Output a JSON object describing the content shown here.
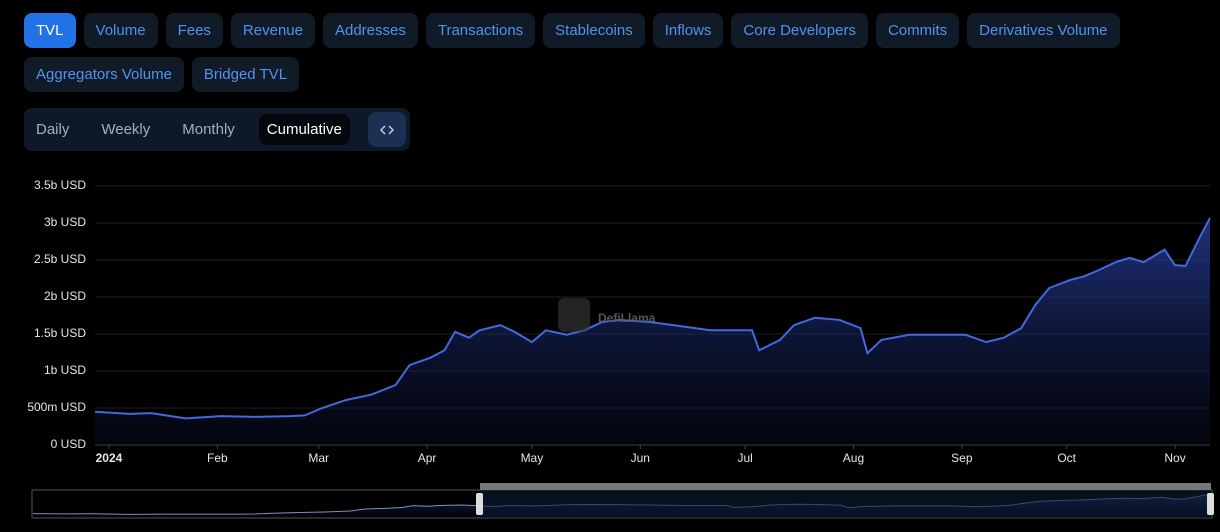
{
  "tabs": [
    "TVL",
    "Volume",
    "Fees",
    "Revenue",
    "Addresses",
    "Transactions",
    "Stablecoins",
    "Inflows",
    "Core Developers",
    "Commits",
    "Derivatives Volume",
    "Aggregators Volume",
    "Bridged TVL"
  ],
  "active_tab": 0,
  "periods": [
    "Daily",
    "Weekly",
    "Monthly",
    "Cumulative"
  ],
  "active_period": 3,
  "chart_data": {
    "type": "area",
    "watermark": "DefiLlama",
    "color": "#4369e0",
    "grid": true,
    "xlim": [
      -4,
      315
    ],
    "xticks": [
      {
        "value": 0,
        "label": "2024"
      },
      {
        "value": 31,
        "label": "Feb"
      },
      {
        "value": 60,
        "label": "Mar"
      },
      {
        "value": 91,
        "label": "Apr"
      },
      {
        "value": 121,
        "label": "May"
      },
      {
        "value": 152,
        "label": "Jun"
      },
      {
        "value": 182,
        "label": "Jul"
      },
      {
        "value": 213,
        "label": "Aug"
      },
      {
        "value": 244,
        "label": "Sep"
      },
      {
        "value": 274,
        "label": "Oct"
      },
      {
        "value": 305,
        "label": "Nov"
      }
    ],
    "ylim": [
      0,
      3500000000
    ],
    "yticks": [
      {
        "value": 0,
        "label": "0 USD"
      },
      {
        "value": 500000000,
        "label": "500m USD"
      },
      {
        "value": 1000000000,
        "label": "1b USD"
      },
      {
        "value": 1500000000,
        "label": "1.5b USD"
      },
      {
        "value": 2000000000,
        "label": "2b USD"
      },
      {
        "value": 2500000000,
        "label": "2.5b USD"
      },
      {
        "value": 3000000000,
        "label": "3b USD"
      },
      {
        "value": 3500000000,
        "label": "3.5b USD"
      }
    ],
    "x": [
      -4,
      6,
      12,
      22,
      32,
      42,
      52,
      56,
      61,
      68,
      75,
      82,
      86,
      92,
      96,
      99,
      103,
      106,
      112,
      116,
      121,
      125,
      131,
      136,
      141,
      146,
      155,
      163,
      172,
      181,
      184,
      186,
      192,
      196,
      202,
      209,
      215,
      217,
      221,
      229,
      238,
      245,
      251,
      256,
      261,
      265,
      269,
      275,
      279,
      283,
      288,
      292,
      296,
      302,
      305,
      308,
      312,
      315
    ],
    "values": [
      450000000,
      420000000,
      430000000,
      360000000,
      390000000,
      380000000,
      390000000,
      400000000,
      500000000,
      610000000,
      680000000,
      810000000,
      1080000000,
      1180000000,
      1280000000,
      1530000000,
      1450000000,
      1550000000,
      1620000000,
      1530000000,
      1390000000,
      1550000000,
      1490000000,
      1550000000,
      1660000000,
      1690000000,
      1660000000,
      1610000000,
      1550000000,
      1550000000,
      1550000000,
      1280000000,
      1420000000,
      1620000000,
      1720000000,
      1690000000,
      1580000000,
      1240000000,
      1420000000,
      1490000000,
      1490000000,
      1490000000,
      1390000000,
      1450000000,
      1580000000,
      1890000000,
      2120000000,
      2230000000,
      2280000000,
      2360000000,
      2470000000,
      2530000000,
      2470000000,
      2640000000,
      2430000000,
      2420000000,
      2800000000,
      3070000000
    ]
  }
}
